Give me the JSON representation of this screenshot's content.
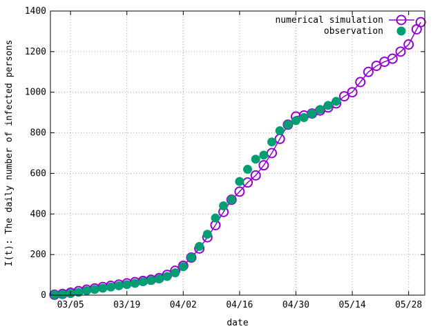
{
  "chart_data": {
    "type": "scatter",
    "xlabel": "date",
    "ylabel": "I(t): The daily number of infected persons",
    "xlim": [
      "2020-02-29",
      "2020-06-01"
    ],
    "ylim": [
      0,
      1400
    ],
    "x_ticks": [
      {
        "date": "2020-03-05",
        "label": "03/05"
      },
      {
        "date": "2020-03-19",
        "label": "03/19"
      },
      {
        "date": "2020-04-02",
        "label": "04/02"
      },
      {
        "date": "2020-04-16",
        "label": "04/16"
      },
      {
        "date": "2020-04-30",
        "label": "04/30"
      },
      {
        "date": "2020-05-14",
        "label": "05/14"
      },
      {
        "date": "2020-05-28",
        "label": "05/28"
      }
    ],
    "y_ticks": [
      0,
      200,
      400,
      600,
      800,
      1000,
      1200,
      1400
    ],
    "grid": true,
    "legend_position": "top-right",
    "series": [
      {
        "name": "numerical simulation",
        "marker": "open-circle-with-line",
        "color": "#9400d3",
        "x": [
          "2020-03-01",
          "2020-03-03",
          "2020-03-05",
          "2020-03-07",
          "2020-03-09",
          "2020-03-11",
          "2020-03-13",
          "2020-03-15",
          "2020-03-17",
          "2020-03-19",
          "2020-03-21",
          "2020-03-23",
          "2020-03-25",
          "2020-03-27",
          "2020-03-29",
          "2020-03-31",
          "2020-04-02",
          "2020-04-04",
          "2020-04-06",
          "2020-04-08",
          "2020-04-10",
          "2020-04-12",
          "2020-04-14",
          "2020-04-16",
          "2020-04-18",
          "2020-04-20",
          "2020-04-22",
          "2020-04-24",
          "2020-04-26",
          "2020-04-28",
          "2020-04-30",
          "2020-05-02",
          "2020-05-04",
          "2020-05-06",
          "2020-05-08",
          "2020-05-10",
          "2020-05-12",
          "2020-05-14",
          "2020-05-16",
          "2020-05-18",
          "2020-05-20",
          "2020-05-22",
          "2020-05-24",
          "2020-05-26",
          "2020-05-28",
          "2020-05-30",
          "2020-05-31"
        ],
        "y": [
          2,
          6,
          12,
          20,
          27,
          33,
          40,
          46,
          52,
          58,
          64,
          70,
          76,
          84,
          100,
          120,
          145,
          185,
          230,
          285,
          345,
          410,
          470,
          510,
          555,
          590,
          640,
          700,
          770,
          840,
          880,
          885,
          895,
          910,
          925,
          945,
          980,
          1000,
          1050,
          1100,
          1130,
          1150,
          1165,
          1200,
          1235,
          1310,
          1345
        ]
      },
      {
        "name": "observation",
        "marker": "filled-circle",
        "color": "#009e73",
        "x": [
          "2020-03-01",
          "2020-03-03",
          "2020-03-05",
          "2020-03-07",
          "2020-03-09",
          "2020-03-11",
          "2020-03-13",
          "2020-03-15",
          "2020-03-17",
          "2020-03-19",
          "2020-03-21",
          "2020-03-23",
          "2020-03-25",
          "2020-03-27",
          "2020-03-29",
          "2020-03-31",
          "2020-04-02",
          "2020-04-04",
          "2020-04-06",
          "2020-04-08",
          "2020-04-10",
          "2020-04-12",
          "2020-04-14",
          "2020-04-16",
          "2020-04-18",
          "2020-04-20",
          "2020-04-22",
          "2020-04-24",
          "2020-04-26",
          "2020-04-28",
          "2020-04-30",
          "2020-05-02",
          "2020-05-04",
          "2020-05-06",
          "2020-05-08",
          "2020-05-10"
        ],
        "y": [
          2,
          4,
          8,
          14,
          22,
          28,
          34,
          40,
          46,
          52,
          58,
          66,
          72,
          80,
          92,
          110,
          140,
          185,
          240,
          300,
          380,
          440,
          470,
          560,
          620,
          670,
          690,
          755,
          810,
          840,
          860,
          875,
          895,
          915,
          935,
          955
        ]
      }
    ]
  }
}
